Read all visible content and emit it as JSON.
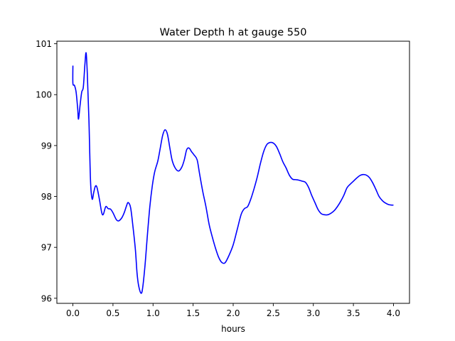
{
  "chart_data": {
    "type": "line",
    "title": "Water Depth h at gauge 550",
    "xlabel": "hours",
    "ylabel": "",
    "xlim": [
      -0.2,
      4.2
    ],
    "ylim": [
      95.9,
      101.05
    ],
    "grid": false,
    "x_ticks": [
      {
        "value": 0.0,
        "label": "0.0"
      },
      {
        "value": 0.5,
        "label": "0.5"
      },
      {
        "value": 1.0,
        "label": "1.0"
      },
      {
        "value": 1.5,
        "label": "1.5"
      },
      {
        "value": 2.0,
        "label": "2.0"
      },
      {
        "value": 2.5,
        "label": "2.5"
      },
      {
        "value": 3.0,
        "label": "3.0"
      },
      {
        "value": 3.5,
        "label": "3.5"
      },
      {
        "value": 4.0,
        "label": "4.0"
      }
    ],
    "y_ticks": [
      {
        "value": 96,
        "label": "96"
      },
      {
        "value": 97,
        "label": "97"
      },
      {
        "value": 98,
        "label": "98"
      },
      {
        "value": 99,
        "label": "99"
      },
      {
        "value": 100,
        "label": "100"
      },
      {
        "value": 101,
        "label": "101"
      }
    ],
    "series": [
      {
        "color": "#0000ff",
        "points": [
          [
            0.0,
            100.57
          ],
          [
            0.0,
            100.22
          ],
          [
            0.02,
            100.18
          ],
          [
            0.04,
            100.05
          ],
          [
            0.06,
            99.72
          ],
          [
            0.07,
            99.52
          ],
          [
            0.09,
            99.8
          ],
          [
            0.11,
            100.05
          ],
          [
            0.13,
            100.15
          ],
          [
            0.15,
            100.6
          ],
          [
            0.165,
            100.82
          ],
          [
            0.18,
            100.4
          ],
          [
            0.2,
            99.5
          ],
          [
            0.22,
            98.3
          ],
          [
            0.24,
            97.95
          ],
          [
            0.26,
            98.08
          ],
          [
            0.28,
            98.2
          ],
          [
            0.3,
            98.18
          ],
          [
            0.33,
            97.95
          ],
          [
            0.36,
            97.68
          ],
          [
            0.38,
            97.65
          ],
          [
            0.41,
            97.8
          ],
          [
            0.44,
            97.76
          ],
          [
            0.47,
            97.75
          ],
          [
            0.5,
            97.68
          ],
          [
            0.54,
            97.55
          ],
          [
            0.57,
            97.52
          ],
          [
            0.61,
            97.58
          ],
          [
            0.64,
            97.68
          ],
          [
            0.67,
            97.82
          ],
          [
            0.69,
            97.88
          ],
          [
            0.72,
            97.78
          ],
          [
            0.75,
            97.4
          ],
          [
            0.78,
            96.95
          ],
          [
            0.8,
            96.5
          ],
          [
            0.82,
            96.25
          ],
          [
            0.85,
            96.1
          ],
          [
            0.87,
            96.2
          ],
          [
            0.9,
            96.65
          ],
          [
            0.93,
            97.25
          ],
          [
            0.96,
            97.8
          ],
          [
            0.99,
            98.2
          ],
          [
            1.02,
            98.48
          ],
          [
            1.06,
            98.7
          ],
          [
            1.09,
            98.95
          ],
          [
            1.12,
            99.2
          ],
          [
            1.15,
            99.31
          ],
          [
            1.18,
            99.22
          ],
          [
            1.21,
            98.95
          ],
          [
            1.24,
            98.7
          ],
          [
            1.28,
            98.55
          ],
          [
            1.32,
            98.5
          ],
          [
            1.36,
            98.58
          ],
          [
            1.39,
            98.72
          ],
          [
            1.42,
            98.92
          ],
          [
            1.45,
            98.95
          ],
          [
            1.48,
            98.88
          ],
          [
            1.51,
            98.82
          ],
          [
            1.55,
            98.72
          ],
          [
            1.58,
            98.45
          ],
          [
            1.62,
            98.1
          ],
          [
            1.66,
            97.8
          ],
          [
            1.7,
            97.45
          ],
          [
            1.74,
            97.2
          ],
          [
            1.78,
            96.98
          ],
          [
            1.82,
            96.8
          ],
          [
            1.86,
            96.7
          ],
          [
            1.9,
            96.7
          ],
          [
            1.95,
            96.85
          ],
          [
            2.0,
            97.05
          ],
          [
            2.05,
            97.35
          ],
          [
            2.1,
            97.65
          ],
          [
            2.14,
            97.76
          ],
          [
            2.18,
            97.8
          ],
          [
            2.22,
            97.95
          ],
          [
            2.26,
            98.15
          ],
          [
            2.3,
            98.38
          ],
          [
            2.34,
            98.65
          ],
          [
            2.38,
            98.88
          ],
          [
            2.42,
            99.02
          ],
          [
            2.46,
            99.06
          ],
          [
            2.5,
            99.05
          ],
          [
            2.54,
            98.98
          ],
          [
            2.58,
            98.84
          ],
          [
            2.62,
            98.68
          ],
          [
            2.66,
            98.56
          ],
          [
            2.7,
            98.42
          ],
          [
            2.74,
            98.34
          ],
          [
            2.78,
            98.33
          ],
          [
            2.82,
            98.32
          ],
          [
            2.86,
            98.3
          ],
          [
            2.9,
            98.28
          ],
          [
            2.94,
            98.18
          ],
          [
            2.98,
            98.02
          ],
          [
            3.02,
            97.88
          ],
          [
            3.06,
            97.74
          ],
          [
            3.1,
            97.66
          ],
          [
            3.14,
            97.64
          ],
          [
            3.18,
            97.64
          ],
          [
            3.22,
            97.67
          ],
          [
            3.26,
            97.72
          ],
          [
            3.3,
            97.8
          ],
          [
            3.34,
            97.9
          ],
          [
            3.38,
            98.02
          ],
          [
            3.42,
            98.17
          ],
          [
            3.46,
            98.24
          ],
          [
            3.5,
            98.3
          ],
          [
            3.54,
            98.36
          ],
          [
            3.58,
            98.41
          ],
          [
            3.62,
            98.43
          ],
          [
            3.66,
            98.42
          ],
          [
            3.7,
            98.37
          ],
          [
            3.74,
            98.27
          ],
          [
            3.78,
            98.14
          ],
          [
            3.82,
            98.0
          ],
          [
            3.86,
            97.92
          ],
          [
            3.9,
            97.87
          ],
          [
            3.94,
            97.84
          ],
          [
            3.98,
            97.83
          ],
          [
            4.0,
            97.83
          ]
        ]
      }
    ]
  }
}
